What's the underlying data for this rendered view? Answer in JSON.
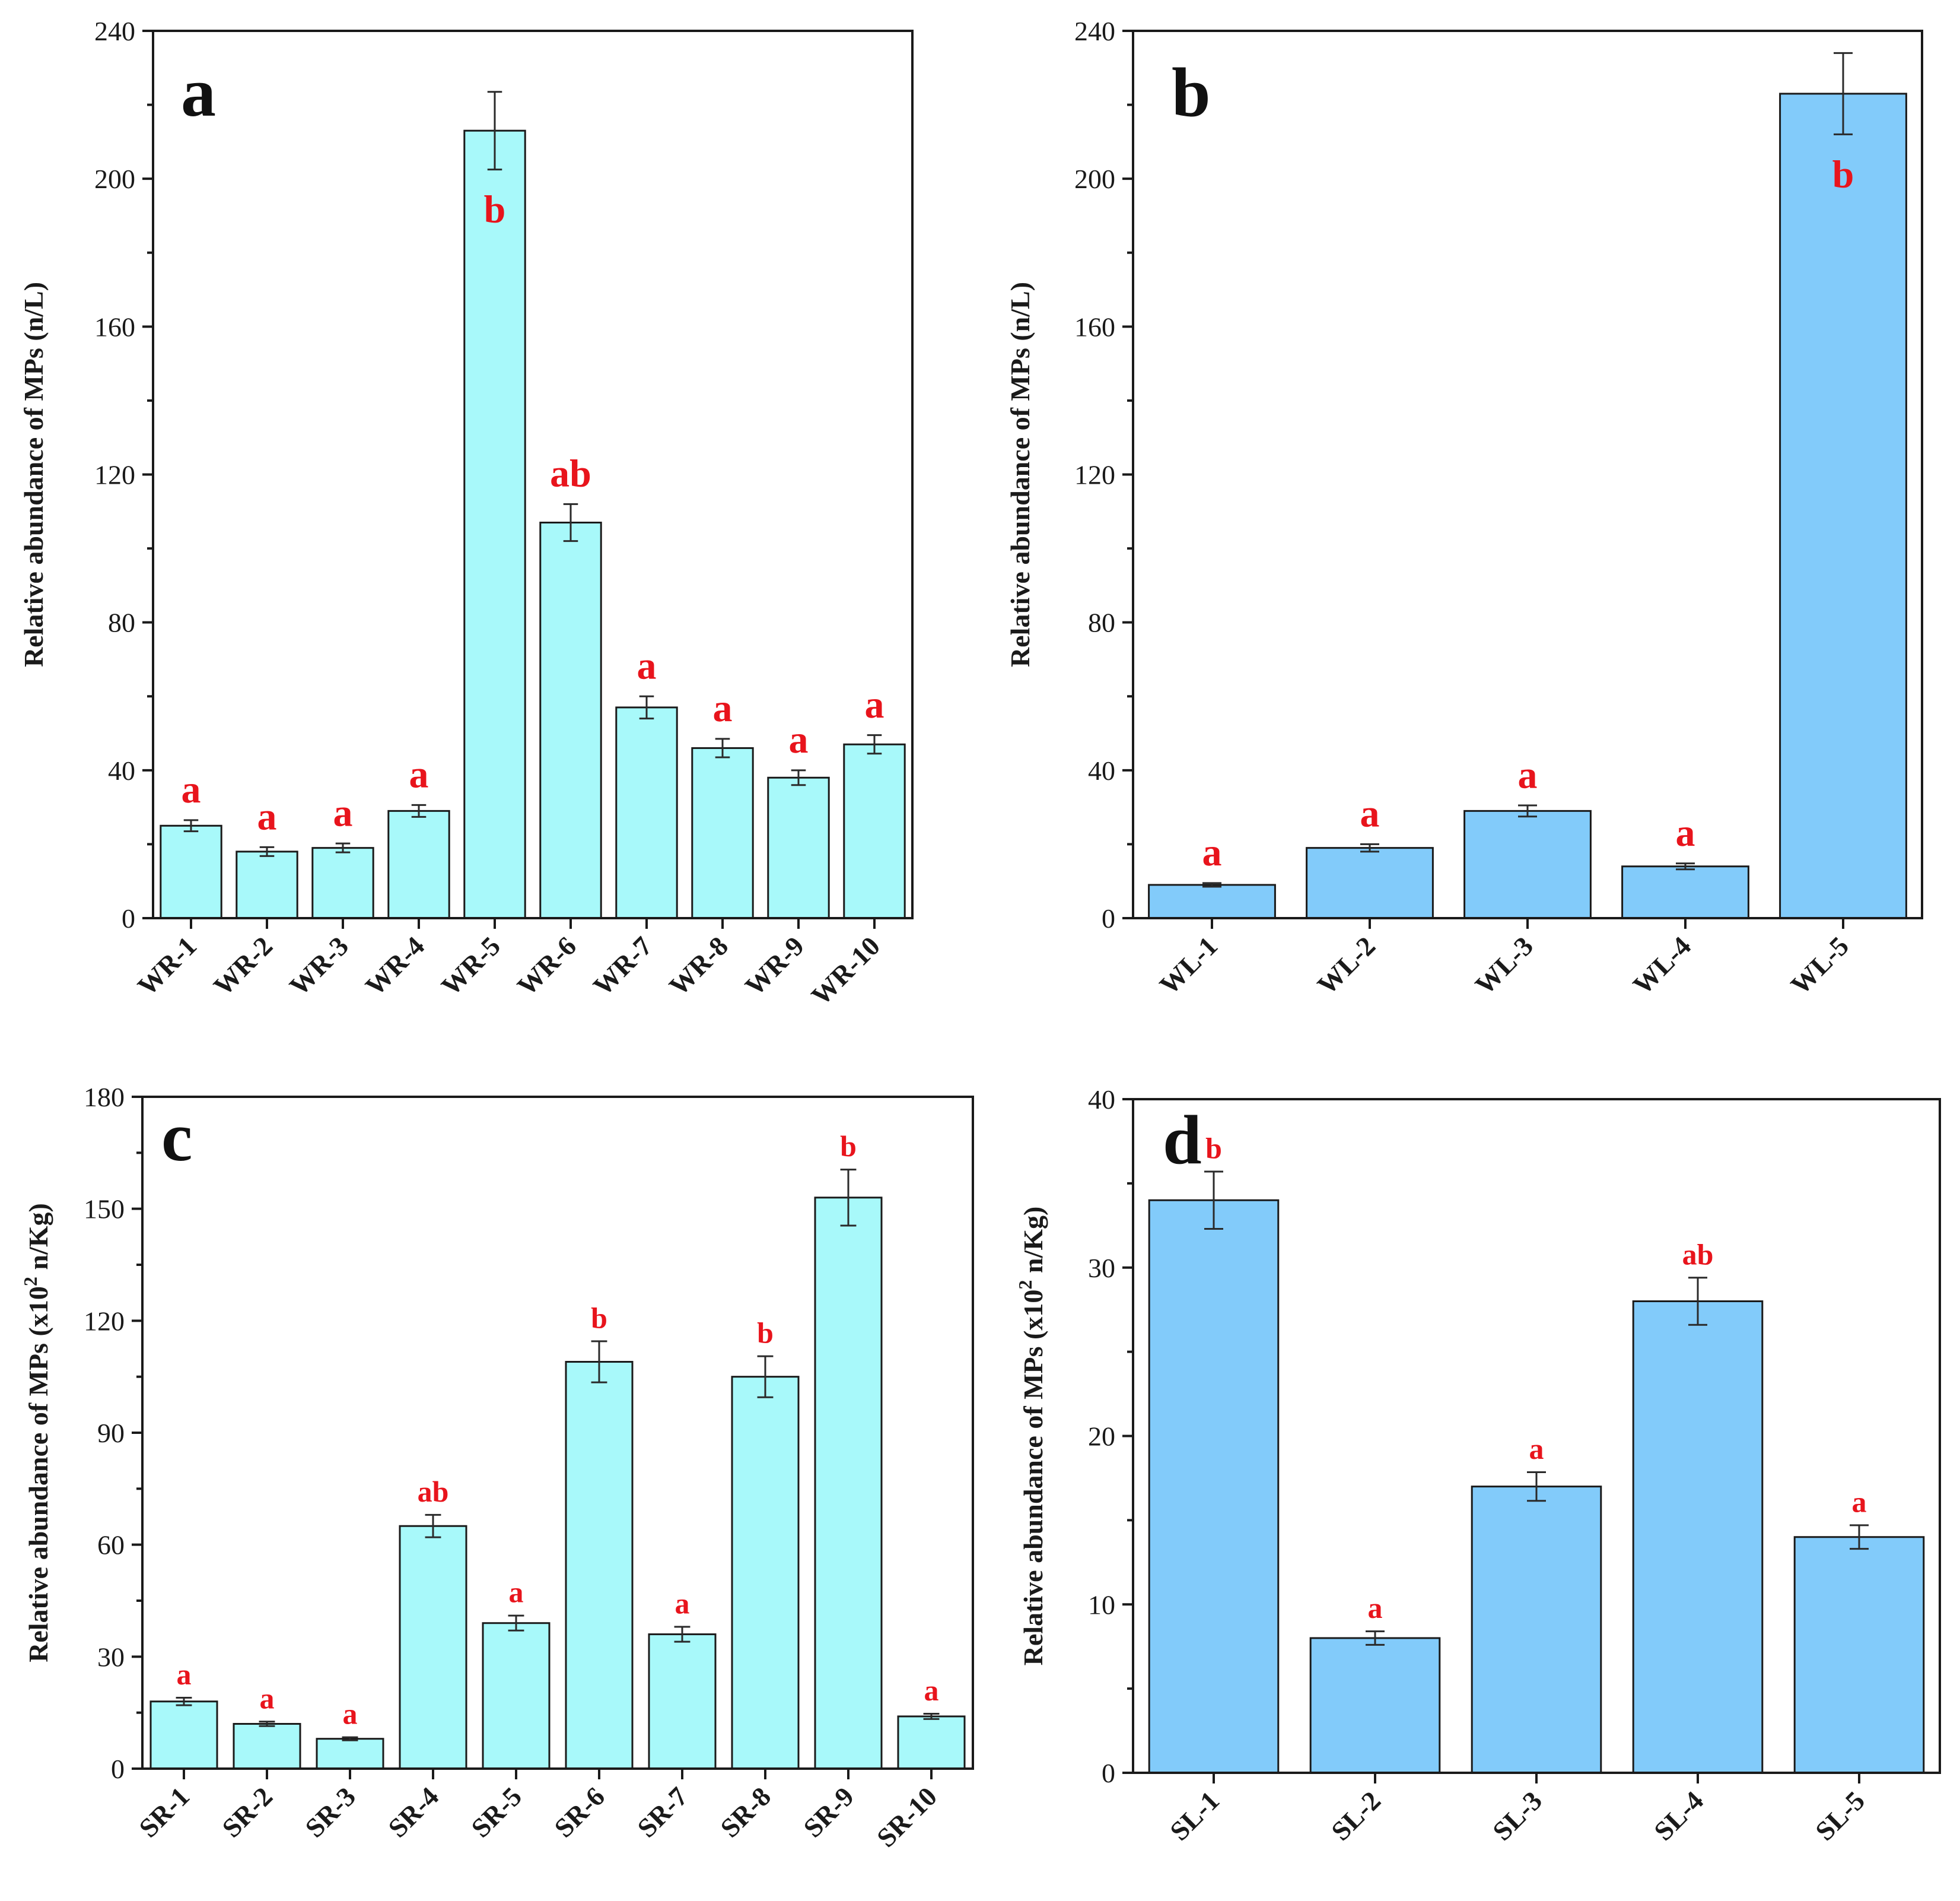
{
  "colors": {
    "bar_cyan": "#A8F9FA",
    "bar_blue": "#82CBFA",
    "letters": "#E8141C",
    "axis": "#1a1a1a"
  },
  "chart_data": [
    {
      "type": "bar",
      "panel": "a",
      "categories": [
        "WR-1",
        "WR-2",
        "WR-3",
        "WR-4",
        "WR-5",
        "WR-6",
        "WR-7",
        "WR-8",
        "WR-9",
        "WR-10"
      ],
      "values": [
        25,
        18,
        19,
        29,
        213,
        107,
        57,
        46,
        38,
        47
      ],
      "errors": [
        1.5,
        1.2,
        1.2,
        1.6,
        10.5,
        5,
        3,
        2.5,
        2,
        2.5
      ],
      "significance": [
        "a",
        "a",
        "a",
        "a",
        "b",
        "ab",
        "a",
        "a",
        "a",
        "a"
      ],
      "significance_inside": [
        false,
        false,
        false,
        false,
        true,
        false,
        false,
        false,
        false,
        false
      ],
      "ylabel": "Relative abundance of MPs (n/L)",
      "ylabel_sup": "",
      "ylabel_after": "",
      "ylim": [
        0,
        240
      ],
      "yticks": [
        0,
        40,
        80,
        120,
        160,
        200,
        240
      ],
      "ytick_labels": [
        "0",
        "40",
        "80",
        "120",
        "160",
        "200",
        "240"
      ],
      "color": "bar_cyan"
    },
    {
      "type": "bar",
      "panel": "b",
      "categories": [
        "WL-1",
        "WL-2",
        "WL-3",
        "WL-4",
        "WL-5"
      ],
      "values": [
        9,
        19,
        29,
        14,
        223
      ],
      "errors": [
        0.5,
        1,
        1.5,
        0.8,
        11
      ],
      "significance": [
        "a",
        "a",
        "a",
        "a",
        "b"
      ],
      "significance_inside": [
        false,
        false,
        false,
        false,
        true
      ],
      "ylabel": "Relative abundance of MPs (n/L)",
      "ylabel_sup": "",
      "ylabel_after": "",
      "ylim": [
        0,
        240
      ],
      "yticks": [
        0,
        40,
        80,
        120,
        160,
        200,
        240
      ],
      "ytick_labels": [
        "0",
        "40",
        "80",
        "120",
        "160",
        "200",
        "240"
      ],
      "color": "bar_blue"
    },
    {
      "type": "bar",
      "panel": "c",
      "categories": [
        "SR-1",
        "SR-2",
        "SR-3",
        "SR-4",
        "SR-5",
        "SR-6",
        "SR-7",
        "SR-8",
        "SR-9",
        "SR-10"
      ],
      "values": [
        18,
        12,
        8,
        65,
        39,
        109,
        36,
        105,
        153,
        14
      ],
      "errors": [
        1,
        0.6,
        0.4,
        3,
        2,
        5.5,
        2,
        5.5,
        7.5,
        0.7
      ],
      "significance": [
        "a",
        "a",
        "a",
        "ab",
        "a",
        "b",
        "a",
        "b",
        "b",
        "a"
      ],
      "significance_inside": [
        false,
        false,
        false,
        false,
        false,
        false,
        false,
        false,
        false,
        false
      ],
      "ylabel": "Relative abundance of MPs (x10",
      "ylabel_sup": "2",
      "ylabel_after": " n/Kg)",
      "ylim": [
        0,
        180
      ],
      "yticks": [
        0,
        30,
        60,
        90,
        120,
        150,
        180
      ],
      "ytick_labels": [
        "0",
        "30",
        "60",
        "90",
        "120",
        "150",
        "180"
      ],
      "color": "bar_cyan"
    },
    {
      "type": "bar",
      "panel": "d",
      "categories": [
        "SL-1",
        "SL-2",
        "SL-3",
        "SL-4",
        "SL-5"
      ],
      "values": [
        34,
        8,
        17,
        28,
        14
      ],
      "errors": [
        1.7,
        0.4,
        0.85,
        1.4,
        0.7
      ],
      "significance": [
        "b",
        "a",
        "a",
        "ab",
        "a"
      ],
      "significance_inside": [
        false,
        false,
        false,
        false,
        false
      ],
      "ylabel": "Relative abundance of MPs (x10",
      "ylabel_sup": "2",
      "ylabel_after": " n/Kg)",
      "ylim": [
        0,
        40
      ],
      "yticks": [
        0,
        10,
        20,
        30,
        40
      ],
      "ytick_labels": [
        "0",
        "10",
        "20",
        "30",
        "40"
      ],
      "color": "bar_blue"
    }
  ]
}
